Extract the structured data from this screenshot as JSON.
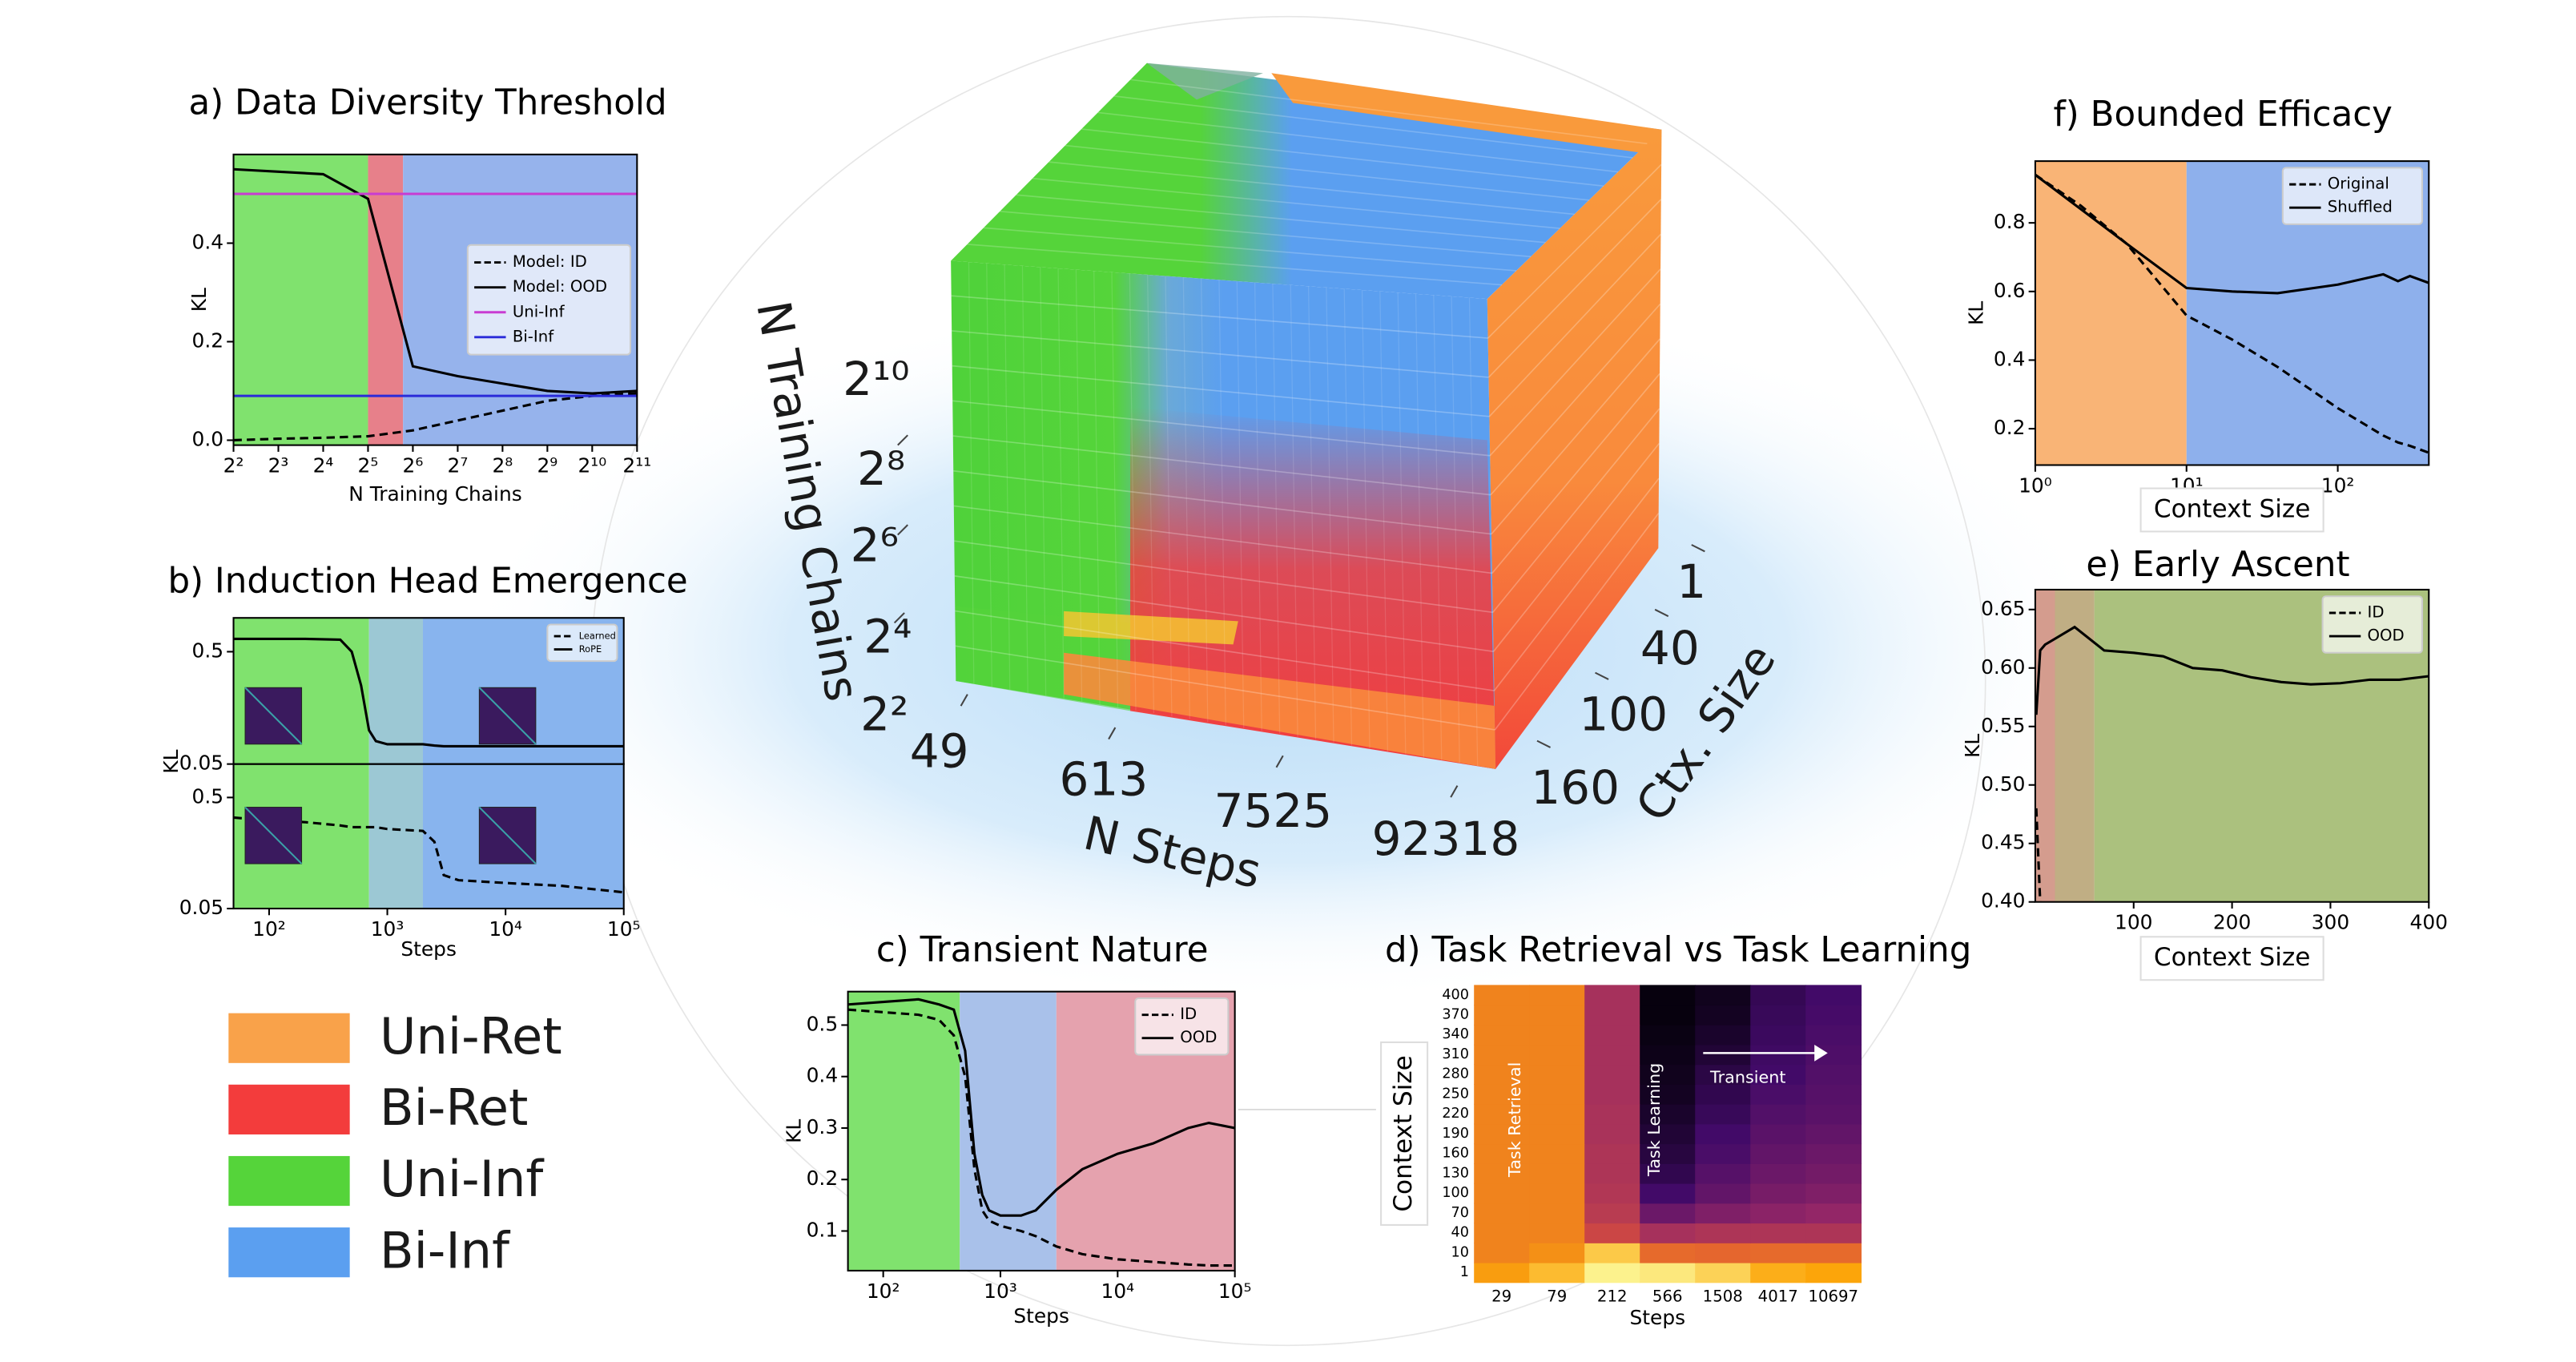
{
  "chart_data": [
    {
      "type": "line",
      "title": "a) Data Diversity Threshold",
      "xlabel": "N Training Chains",
      "ylabel": "KL",
      "x": [
        4,
        8,
        16,
        32,
        64,
        128,
        256,
        512,
        1024,
        2048
      ],
      "xscale": "log",
      "xlim": [
        4,
        2048
      ],
      "xticks": [
        {
          "value": 4,
          "label": "2²"
        },
        {
          "value": 8,
          "label": "2³"
        },
        {
          "value": 16,
          "label": "2⁴"
        },
        {
          "value": 32,
          "label": "2⁵"
        },
        {
          "value": 64,
          "label": "2⁶"
        },
        {
          "value": 128,
          "label": "2⁷"
        },
        {
          "value": 256,
          "label": "2⁸"
        },
        {
          "value": 512,
          "label": "2⁹"
        },
        {
          "value": 1024,
          "label": "2¹⁰"
        },
        {
          "value": 2048,
          "label": "2¹¹"
        }
      ],
      "ylim": [
        -0.01,
        0.58
      ],
      "yticks": [
        {
          "value": 0,
          "label": "0.0"
        },
        0.2,
        0.4
      ],
      "regions": [
        {
          "from": 4,
          "to": 32,
          "color": "#80e26e"
        },
        {
          "from": 32,
          "to": 55,
          "color": "#e7808a"
        },
        {
          "from": 55,
          "to": 2048,
          "color": "#96b3ec"
        }
      ],
      "legend": "center right",
      "series": [
        {
          "name": "Model: ID",
          "color": "#000000",
          "style": "dashed",
          "values": [
            0.0,
            0.003,
            0.005,
            0.008,
            0.02,
            0.04,
            0.06,
            0.08,
            0.09,
            0.095
          ]
        },
        {
          "name": "Model: OOD",
          "color": "#000000",
          "style": "solid",
          "values": [
            0.55,
            0.545,
            0.54,
            0.49,
            0.15,
            0.13,
            0.115,
            0.1,
            0.095,
            0.1
          ]
        },
        {
          "name": "Uni-Inf",
          "color": "#c83cd2",
          "style": "solid",
          "values": [
            0.5,
            0.5,
            0.5,
            0.5,
            0.5,
            0.5,
            0.5,
            0.5,
            0.5,
            0.5
          ]
        },
        {
          "name": "Bi-Inf",
          "color": "#2b2bd9",
          "style": "solid",
          "values": [
            0.09,
            0.09,
            0.09,
            0.09,
            0.09,
            0.09,
            0.09,
            0.09,
            0.09,
            0.09
          ]
        }
      ]
    },
    {
      "type": "line",
      "title": "b) Induction Head Emergence",
      "xlabel": "Steps",
      "ylabel": "KL",
      "x": [
        50,
        100,
        200,
        400,
        500,
        600,
        700,
        800,
        1000,
        2000,
        2500,
        3000,
        4000,
        10000,
        30000,
        100000
      ],
      "xscale": "log",
      "xlim": [
        50,
        100000
      ],
      "xticks": [
        {
          "value": 100,
          "label": "10²"
        },
        {
          "value": 1000,
          "label": "10³"
        },
        {
          "value": 10000,
          "label": "10⁴"
        },
        {
          "value": 100000,
          "label": "10⁵"
        }
      ],
      "yscale": "log",
      "ylim": [
        0.05,
        1.0
      ],
      "yticks": [
        0.05,
        0.5
      ],
      "regions": [
        {
          "from": 50,
          "to": 700,
          "color": "#80e26e"
        },
        {
          "from": 700,
          "to": 2000,
          "color": "#9cc8d4"
        },
        {
          "from": 2000,
          "to": 100000,
          "color": "#88b4ee"
        }
      ],
      "legend": "upper right",
      "series": [
        {
          "name": "Learned",
          "color": "#000000",
          "style": "dashed",
          "values": [
            0.33,
            0.31,
            0.3,
            0.28,
            0.27,
            0.27,
            0.27,
            0.27,
            0.26,
            0.25,
            0.2,
            0.1,
            0.09,
            0.085,
            0.08,
            0.07
          ]
        },
        {
          "name": "RoPE",
          "color": "#000000",
          "style": "solid",
          "values": [
            0.65,
            0.65,
            0.65,
            0.64,
            0.5,
            0.25,
            0.1,
            0.08,
            0.075,
            0.075,
            0.073,
            0.072,
            0.072,
            0.072,
            0.072,
            0.072
          ]
        }
      ]
    },
    {
      "type": "line",
      "title": "c) Transient Nature",
      "xlabel": "Steps",
      "ylabel": "KL",
      "x": [
        50,
        100,
        200,
        300,
        400,
        500,
        600,
        700,
        800,
        1000,
        1500,
        2000,
        3000,
        5000,
        10000,
        20000,
        40000,
        60000,
        100000
      ],
      "xscale": "log",
      "xlim": [
        50,
        100000
      ],
      "xticks": [
        {
          "value": 100,
          "label": "10²"
        },
        {
          "value": 1000,
          "label": "10³"
        },
        {
          "value": 10000,
          "label": "10⁴"
        },
        {
          "value": 100000,
          "label": "10⁵"
        }
      ],
      "ylim": [
        0.023,
        0.565
      ],
      "yticks": [
        0.1,
        0.2,
        0.3,
        0.4,
        0.5
      ],
      "regions": [
        {
          "from": 50,
          "to": 450,
          "color": "#80e26e"
        },
        {
          "from": 450,
          "to": 3000,
          "color": "#a9c1ea"
        },
        {
          "from": 3000,
          "to": 100000,
          "color": "#e5a2ae"
        }
      ],
      "legend": "upper right",
      "series": [
        {
          "name": "ID",
          "color": "#000000",
          "style": "dashed",
          "values": [
            0.53,
            0.525,
            0.52,
            0.51,
            0.48,
            0.4,
            0.22,
            0.14,
            0.12,
            0.11,
            0.1,
            0.09,
            0.07,
            0.055,
            0.045,
            0.04,
            0.035,
            0.033,
            0.033
          ]
        },
        {
          "name": "OOD",
          "color": "#000000",
          "style": "solid",
          "values": [
            0.54,
            0.545,
            0.55,
            0.54,
            0.53,
            0.45,
            0.25,
            0.17,
            0.14,
            0.13,
            0.13,
            0.14,
            0.18,
            0.22,
            0.25,
            0.27,
            0.3,
            0.31,
            0.3
          ]
        }
      ]
    },
    {
      "type": "heatmap",
      "title": "d) Task Retrieval vs Task Learning",
      "xlabel": "Steps",
      "ylabel": "Context Size",
      "categories": [
        "29",
        "79",
        "212",
        "566",
        "1508",
        "4017",
        "10697"
      ],
      "y": [
        "1",
        "10",
        "40",
        "70",
        "100",
        "130",
        "160",
        "190",
        "220",
        "250",
        "280",
        "310",
        "340",
        "370",
        "400"
      ],
      "colormap": "inferno",
      "zlim": [
        0,
        1
      ],
      "annotations": [
        "Task Retrieval",
        "Task Learning",
        "Transient"
      ],
      "values": [
        [
          0.78,
          0.85,
          0.97,
          0.95,
          0.9,
          0.82,
          0.8
        ],
        [
          0.72,
          0.75,
          0.88,
          0.66,
          0.65,
          0.66,
          0.66
        ],
        [
          0.72,
          0.72,
          0.55,
          0.45,
          0.47,
          0.47,
          0.47
        ],
        [
          0.72,
          0.72,
          0.5,
          0.3,
          0.35,
          0.38,
          0.4
        ],
        [
          0.72,
          0.72,
          0.48,
          0.2,
          0.28,
          0.33,
          0.35
        ],
        [
          0.72,
          0.72,
          0.47,
          0.15,
          0.25,
          0.3,
          0.32
        ],
        [
          0.72,
          0.72,
          0.47,
          0.12,
          0.22,
          0.28,
          0.3
        ],
        [
          0.72,
          0.72,
          0.46,
          0.1,
          0.2,
          0.26,
          0.28
        ],
        [
          0.72,
          0.72,
          0.46,
          0.08,
          0.17,
          0.24,
          0.26
        ],
        [
          0.72,
          0.72,
          0.45,
          0.06,
          0.15,
          0.22,
          0.25
        ],
        [
          0.72,
          0.72,
          0.45,
          0.05,
          0.13,
          0.2,
          0.24
        ],
        [
          0.72,
          0.72,
          0.45,
          0.04,
          0.1,
          0.19,
          0.23
        ],
        [
          0.72,
          0.72,
          0.45,
          0.03,
          0.08,
          0.18,
          0.22
        ],
        [
          0.72,
          0.72,
          0.45,
          0.02,
          0.06,
          0.17,
          0.21
        ],
        [
          0.72,
          0.72,
          0.45,
          0.02,
          0.05,
          0.16,
          0.2
        ]
      ]
    },
    {
      "type": "line",
      "title": "e) Early Ascent",
      "xlabel": "Context Size",
      "ylabel": "KL",
      "x": [
        1,
        5,
        10,
        20,
        40,
        70,
        100,
        130,
        160,
        190,
        220,
        250,
        280,
        310,
        340,
        370,
        400
      ],
      "xlim": [
        0,
        400
      ],
      "xticks": [
        100,
        200,
        300,
        400
      ],
      "ylim": [
        0.4,
        0.667
      ],
      "yticks": [
        {
          "value": 0.4,
          "label": "0.40"
        },
        0.45,
        {
          "value": 0.5,
          "label": "0.50"
        },
        0.55,
        {
          "value": 0.6,
          "label": "0.60"
        },
        0.65
      ],
      "regions": [
        {
          "from": 0,
          "to": 20,
          "color": "#d49c8e"
        },
        {
          "from": 20,
          "to": 60,
          "color": "#c0ae84"
        },
        {
          "from": 60,
          "to": 400,
          "color": "#abc17e"
        }
      ],
      "legend": "upper right",
      "series": [
        {
          "name": "ID",
          "color": "#000000",
          "style": "dashed",
          "values": [
            0.48,
            0.4,
            null,
            null,
            null,
            null,
            null,
            null,
            null,
            null,
            null,
            null,
            null,
            null,
            null,
            null,
            null
          ]
        },
        {
          "name": "OOD",
          "color": "#000000",
          "style": "solid",
          "values": [
            0.56,
            0.615,
            0.62,
            0.625,
            0.635,
            0.615,
            0.613,
            0.61,
            0.6,
            0.598,
            0.592,
            0.588,
            0.586,
            0.587,
            0.59,
            0.59,
            0.593
          ]
        }
      ]
    },
    {
      "type": "line",
      "title": "f) Bounded Efficacy",
      "xlabel": "Context Size",
      "ylabel": "KL",
      "x": [
        1,
        2,
        4,
        10,
        20,
        40,
        100,
        200,
        250,
        300,
        400
      ],
      "xscale": "log",
      "xlim": [
        1,
        400
      ],
      "xticks": [
        {
          "value": 1,
          "label": "10⁰"
        },
        {
          "value": 10,
          "label": "10¹"
        },
        {
          "value": 100,
          "label": "10²"
        }
      ],
      "ylim": [
        0.094,
        0.98
      ],
      "yticks": [
        0.2,
        0.4,
        0.6,
        0.8
      ],
      "regions": [
        {
          "from": 1,
          "to": 10,
          "color": "#f9b476"
        },
        {
          "from": 10,
          "to": 400,
          "color": "#8eb0ec"
        }
      ],
      "legend": "upper right",
      "series": [
        {
          "name": "Original",
          "color": "#000000",
          "style": "dashed",
          "values": [
            0.94,
            0.85,
            0.74,
            0.53,
            0.46,
            0.38,
            0.26,
            0.18,
            0.16,
            0.15,
            0.13
          ]
        },
        {
          "name": "Shuffled",
          "color": "#000000",
          "style": "solid",
          "values": [
            0.94,
            0.84,
            0.74,
            0.61,
            0.6,
            0.595,
            0.62,
            0.65,
            0.63,
            0.645,
            0.625
          ]
        }
      ]
    }
  ],
  "cube": {
    "ylabel": "N Training Chains",
    "yticks": [
      "2²",
      "2⁴",
      "2⁶",
      "2⁸",
      "2¹⁰"
    ],
    "xlabel": "N Steps",
    "xticks": [
      "49",
      "613",
      "7525",
      "92318"
    ],
    "zlabel": "Ctx. Size",
    "zticks": [
      "1",
      "40",
      "100",
      "160"
    ]
  },
  "legend": [
    {
      "name": "Uni-Ret",
      "color": "#f9a24a"
    },
    {
      "name": "Bi-Ret",
      "color": "#f33c3c"
    },
    {
      "name": "Uni-Inf",
      "color": "#55d43a"
    },
    {
      "name": "Bi-Inf",
      "color": "#5b9ff0"
    }
  ]
}
